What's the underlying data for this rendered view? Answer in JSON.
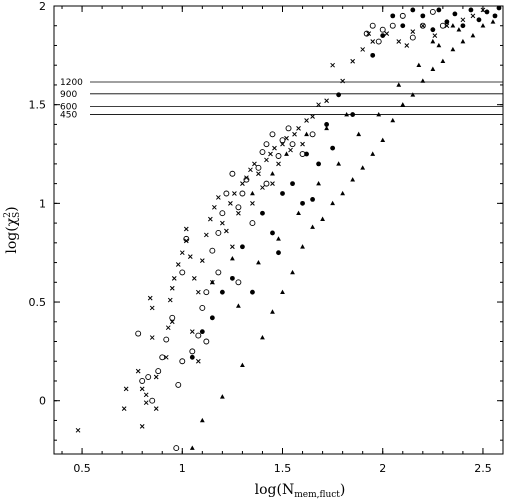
{
  "chart_data": {
    "type": "scatter",
    "xlabel": {
      "main": "log(N",
      "sub": "mem,fluct",
      "close": ")"
    },
    "ylabel": {
      "main": "log(χ",
      "sup": "2",
      "sub": "S",
      "close": ")"
    },
    "xlim": [
      0.36,
      2.6
    ],
    "ylim": [
      -0.27,
      2.0
    ],
    "xticks": [
      0.5,
      1,
      1.5,
      2,
      2.5
    ],
    "xtick_labels": [
      "0.5",
      "1",
      "1.5",
      "2",
      "2.5"
    ],
    "yticks": [
      0,
      0.5,
      1,
      1.5,
      2
    ],
    "ytick_labels": [
      "0",
      "0.5",
      "1",
      "1.5",
      "2"
    ],
    "grid": false,
    "reference_lines": [
      {
        "label": "1200",
        "y": 1.615
      },
      {
        "label": "900",
        "y": 1.555
      },
      {
        "label": "600",
        "y": 1.49
      },
      {
        "label": "450",
        "y": 1.45
      }
    ],
    "series": [
      {
        "marker": "cross",
        "points": [
          [
            0.48,
            -0.15
          ],
          [
            0.72,
            0.06
          ],
          [
            0.71,
            -0.04
          ],
          [
            0.78,
            0.15
          ],
          [
            0.8,
            0.06
          ],
          [
            0.8,
            -0.13
          ],
          [
            0.82,
            0.03
          ],
          [
            0.82,
            -0.01
          ],
          [
            0.85,
            0.32
          ],
          [
            0.85,
            0.47
          ],
          [
            0.84,
            0.52
          ],
          [
            0.87,
            -0.04
          ],
          [
            0.87,
            0.12
          ],
          [
            0.92,
            0.22
          ],
          [
            0.93,
            0.37
          ],
          [
            0.94,
            0.51
          ],
          [
            0.95,
            0.57
          ],
          [
            0.96,
            0.62
          ],
          [
            0.98,
            0.69
          ],
          [
            1.0,
            0.75
          ],
          [
            1.02,
            0.81
          ],
          [
            1.02,
            0.87
          ],
          [
            1.04,
            0.73
          ],
          [
            1.06,
            0.62
          ],
          [
            1.08,
            0.55
          ],
          [
            1.1,
            0.71
          ],
          [
            1.12,
            0.84
          ],
          [
            1.14,
            0.92
          ],
          [
            1.16,
            0.98
          ],
          [
            1.18,
            1.03
          ],
          [
            1.2,
            0.9
          ],
          [
            1.22,
            0.86
          ],
          [
            1.24,
            1.0
          ],
          [
            1.26,
            1.05
          ],
          [
            1.28,
            0.95
          ],
          [
            1.3,
            1.1
          ],
          [
            1.32,
            1.13
          ],
          [
            1.34,
            1.17
          ],
          [
            1.36,
            1.2
          ],
          [
            1.38,
            1.15
          ],
          [
            1.4,
            1.08
          ],
          [
            1.42,
            1.22
          ],
          [
            1.44,
            1.25
          ],
          [
            1.46,
            1.28
          ],
          [
            1.48,
            1.2
          ],
          [
            1.5,
            1.3
          ],
          [
            1.52,
            1.33
          ],
          [
            1.54,
            1.27
          ],
          [
            1.56,
            1.35
          ],
          [
            1.58,
            1.38
          ],
          [
            1.6,
            1.3
          ],
          [
            1.62,
            1.42
          ],
          [
            1.65,
            1.44
          ],
          [
            1.68,
            1.5
          ],
          [
            1.72,
            1.52
          ],
          [
            1.75,
            1.7
          ],
          [
            1.8,
            1.62
          ],
          [
            1.85,
            1.72
          ],
          [
            1.9,
            1.78
          ],
          [
            1.93,
            1.86
          ],
          [
            1.95,
            1.82
          ],
          [
            2.02,
            1.86
          ],
          [
            2.08,
            1.82
          ],
          [
            2.12,
            1.8
          ],
          [
            2.15,
            1.87
          ],
          [
            2.2,
            1.9
          ],
          [
            2.26,
            1.85
          ],
          [
            2.32,
            1.9
          ],
          [
            2.4,
            1.93
          ],
          [
            2.45,
            1.95
          ],
          [
            2.5,
            1.98
          ],
          [
            1.05,
            0.35
          ],
          [
            1.15,
            0.6
          ],
          [
            1.25,
            0.78
          ],
          [
            0.95,
            0.4
          ],
          [
            1.08,
            0.2
          ],
          [
            1.35,
            1.0
          ],
          [
            1.45,
            1.1
          ]
        ]
      },
      {
        "marker": "open-circle",
        "points": [
          [
            0.78,
            0.34
          ],
          [
            0.83,
            0.12
          ],
          [
            0.85,
            0.0
          ],
          [
            0.88,
            0.15
          ],
          [
            0.9,
            0.22
          ],
          [
            0.92,
            0.31
          ],
          [
            0.95,
            0.42
          ],
          [
            0.97,
            -0.24
          ],
          [
            0.98,
            0.08
          ],
          [
            1.0,
            0.65
          ],
          [
            1.02,
            0.82
          ],
          [
            1.05,
            0.25
          ],
          [
            1.08,
            0.33
          ],
          [
            1.1,
            0.47
          ],
          [
            1.12,
            0.55
          ],
          [
            1.15,
            0.76
          ],
          [
            1.18,
            0.85
          ],
          [
            1.2,
            0.95
          ],
          [
            1.22,
            1.05
          ],
          [
            1.25,
            1.15
          ],
          [
            1.28,
            0.98
          ],
          [
            1.3,
            1.05
          ],
          [
            1.32,
            1.12
          ],
          [
            1.35,
            0.9
          ],
          [
            1.38,
            1.18
          ],
          [
            1.4,
            1.26
          ],
          [
            1.42,
            1.3
          ],
          [
            1.45,
            1.35
          ],
          [
            1.48,
            1.24
          ],
          [
            1.5,
            1.32
          ],
          [
            1.53,
            1.38
          ],
          [
            1.55,
            1.3
          ],
          [
            1.6,
            1.25
          ],
          [
            1.65,
            1.35
          ],
          [
            1.92,
            1.86
          ],
          [
            1.95,
            1.9
          ],
          [
            1.98,
            1.82
          ],
          [
            2.0,
            1.88
          ],
          [
            2.05,
            1.9
          ],
          [
            2.1,
            1.95
          ],
          [
            2.15,
            1.84
          ],
          [
            2.2,
            1.9
          ],
          [
            2.25,
            1.97
          ],
          [
            2.3,
            1.9
          ],
          [
            1.12,
            0.3
          ],
          [
            1.28,
            0.6
          ],
          [
            0.8,
            0.1
          ],
          [
            1.0,
            0.2
          ],
          [
            1.42,
            1.1
          ],
          [
            1.18,
            0.65
          ]
        ]
      },
      {
        "marker": "filled-circle",
        "points": [
          [
            1.05,
            0.22
          ],
          [
            1.15,
            0.42
          ],
          [
            1.25,
            0.62
          ],
          [
            1.35,
            0.55
          ],
          [
            1.45,
            0.85
          ],
          [
            1.55,
            1.1
          ],
          [
            1.6,
            1.0
          ],
          [
            1.68,
            1.2
          ],
          [
            1.72,
            1.4
          ],
          [
            1.78,
            1.55
          ],
          [
            1.85,
            1.45
          ],
          [
            1.95,
            1.75
          ],
          [
            2.0,
            1.85
          ],
          [
            2.05,
            1.95
          ],
          [
            2.1,
            1.9
          ],
          [
            2.15,
            1.98
          ],
          [
            2.2,
            1.95
          ],
          [
            2.25,
            1.88
          ],
          [
            2.28,
            1.98
          ],
          [
            2.32,
            1.92
          ],
          [
            2.36,
            1.96
          ],
          [
            2.4,
            1.9
          ],
          [
            2.44,
            1.98
          ],
          [
            2.48,
            1.93
          ],
          [
            2.52,
            1.97
          ],
          [
            2.56,
            1.95
          ],
          [
            2.58,
            1.99
          ],
          [
            1.3,
            0.78
          ],
          [
            1.4,
            0.95
          ],
          [
            1.5,
            1.05
          ],
          [
            1.62,
            1.25
          ],
          [
            1.75,
            1.28
          ],
          [
            1.2,
            0.55
          ],
          [
            1.1,
            0.35
          ],
          [
            1.48,
            0.75
          ],
          [
            1.65,
            1.02
          ]
        ]
      },
      {
        "marker": "filled-triangle",
        "points": [
          [
            1.05,
            -0.24
          ],
          [
            1.1,
            -0.1
          ],
          [
            1.2,
            0.02
          ],
          [
            1.3,
            0.18
          ],
          [
            1.4,
            0.32
          ],
          [
            1.45,
            0.45
          ],
          [
            1.5,
            0.55
          ],
          [
            1.55,
            0.65
          ],
          [
            1.6,
            0.78
          ],
          [
            1.65,
            0.88
          ],
          [
            1.7,
            0.92
          ],
          [
            1.75,
            1.0
          ],
          [
            1.8,
            1.05
          ],
          [
            1.85,
            1.12
          ],
          [
            1.9,
            1.18
          ],
          [
            1.95,
            1.25
          ],
          [
            2.0,
            1.32
          ],
          [
            2.05,
            1.42
          ],
          [
            2.1,
            1.5
          ],
          [
            2.15,
            1.55
          ],
          [
            2.2,
            1.62
          ],
          [
            2.25,
            1.68
          ],
          [
            2.3,
            1.72
          ],
          [
            2.35,
            1.78
          ],
          [
            2.4,
            1.82
          ],
          [
            2.45,
            1.85
          ],
          [
            2.5,
            1.9
          ],
          [
            2.55,
            1.92
          ],
          [
            1.28,
            0.48
          ],
          [
            1.38,
            0.7
          ],
          [
            1.48,
            0.82
          ],
          [
            1.58,
            0.95
          ],
          [
            1.68,
            1.1
          ],
          [
            1.78,
            1.2
          ],
          [
            1.88,
            1.35
          ],
          [
            1.98,
            1.45
          ],
          [
            2.08,
            1.6
          ],
          [
            2.18,
            1.7
          ],
          [
            2.28,
            1.8
          ],
          [
            2.38,
            1.88
          ],
          [
            1.35,
            1.05
          ],
          [
            1.45,
            1.15
          ],
          [
            1.52,
            1.25
          ],
          [
            1.62,
            1.35
          ],
          [
            1.72,
            1.38
          ],
          [
            1.82,
            1.45
          ],
          [
            1.15,
            0.6
          ],
          [
            1.25,
            0.72
          ],
          [
            2.25,
            1.82
          ],
          [
            2.35,
            1.9
          ]
        ]
      }
    ]
  }
}
